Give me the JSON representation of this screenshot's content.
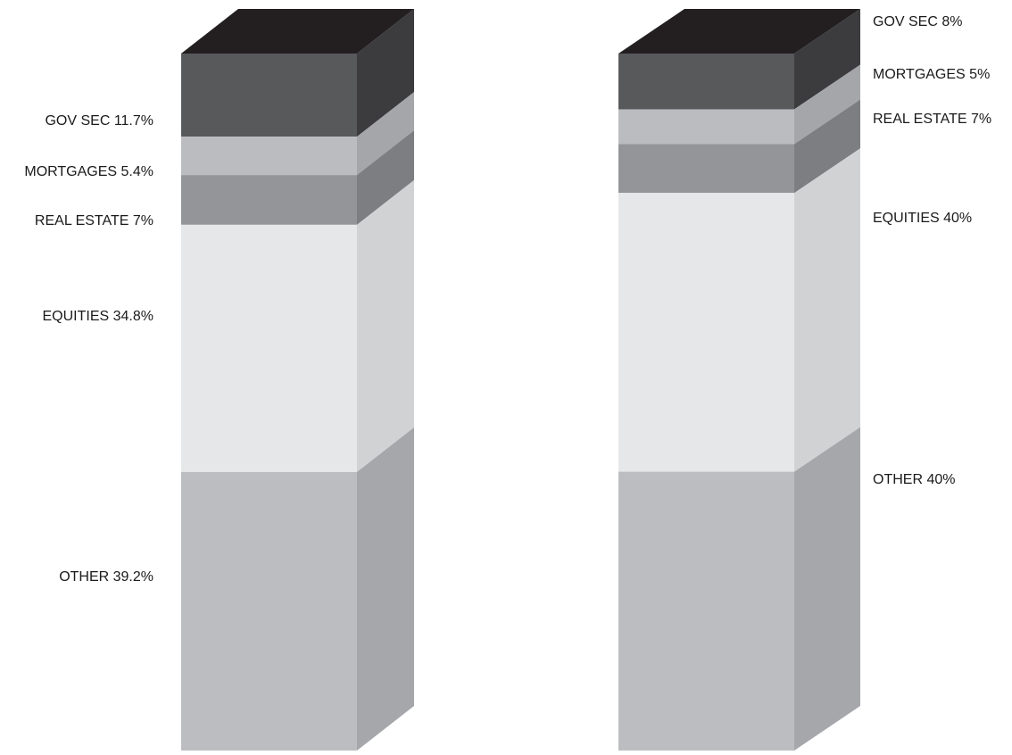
{
  "chart_data": [
    {
      "type": "bar",
      "segments": [
        {
          "label": "GOV SEC  11.7%",
          "value": 11.7,
          "front": "#58595b",
          "side": "#3c3c3e"
        },
        {
          "label": "MORTGAGES 5.4%",
          "value": 5.4,
          "front": "#bbbcbf",
          "side": "#a5a6a9"
        },
        {
          "label": "REAL ESTATE 7%",
          "value": 7,
          "front": "#939598",
          "side": "#7d7e81"
        },
        {
          "label": "EQUITIES 34.8%",
          "value": 34.8,
          "front": "#e6e7e8",
          "side": "#d1d2d4"
        },
        {
          "label": "OTHER 39.2%",
          "value": 39.2,
          "front": "#bcbdc0",
          "side": "#a6a7aa"
        }
      ],
      "top_color": "#231f20",
      "label_side": "left"
    },
    {
      "type": "bar",
      "segments": [
        {
          "label": "GOV SEC  8%",
          "value": 8,
          "front": "#58595b",
          "side": "#3c3c3e"
        },
        {
          "label": "MORTGAGES 5%",
          "value": 5,
          "front": "#bbbcbf",
          "side": "#a5a6a9"
        },
        {
          "label": "REAL ESTATE 7%",
          "value": 7,
          "front": "#939598",
          "side": "#7d7e81"
        },
        {
          "label": "EQUITIES 40%",
          "value": 40,
          "front": "#e6e7e8",
          "side": "#d1d2d4"
        },
        {
          "label": "OTHER 40%",
          "value": 40,
          "front": "#bcbdc0",
          "side": "#a6a7aa"
        }
      ],
      "top_color": "#231f20",
      "label_side": "right"
    }
  ]
}
